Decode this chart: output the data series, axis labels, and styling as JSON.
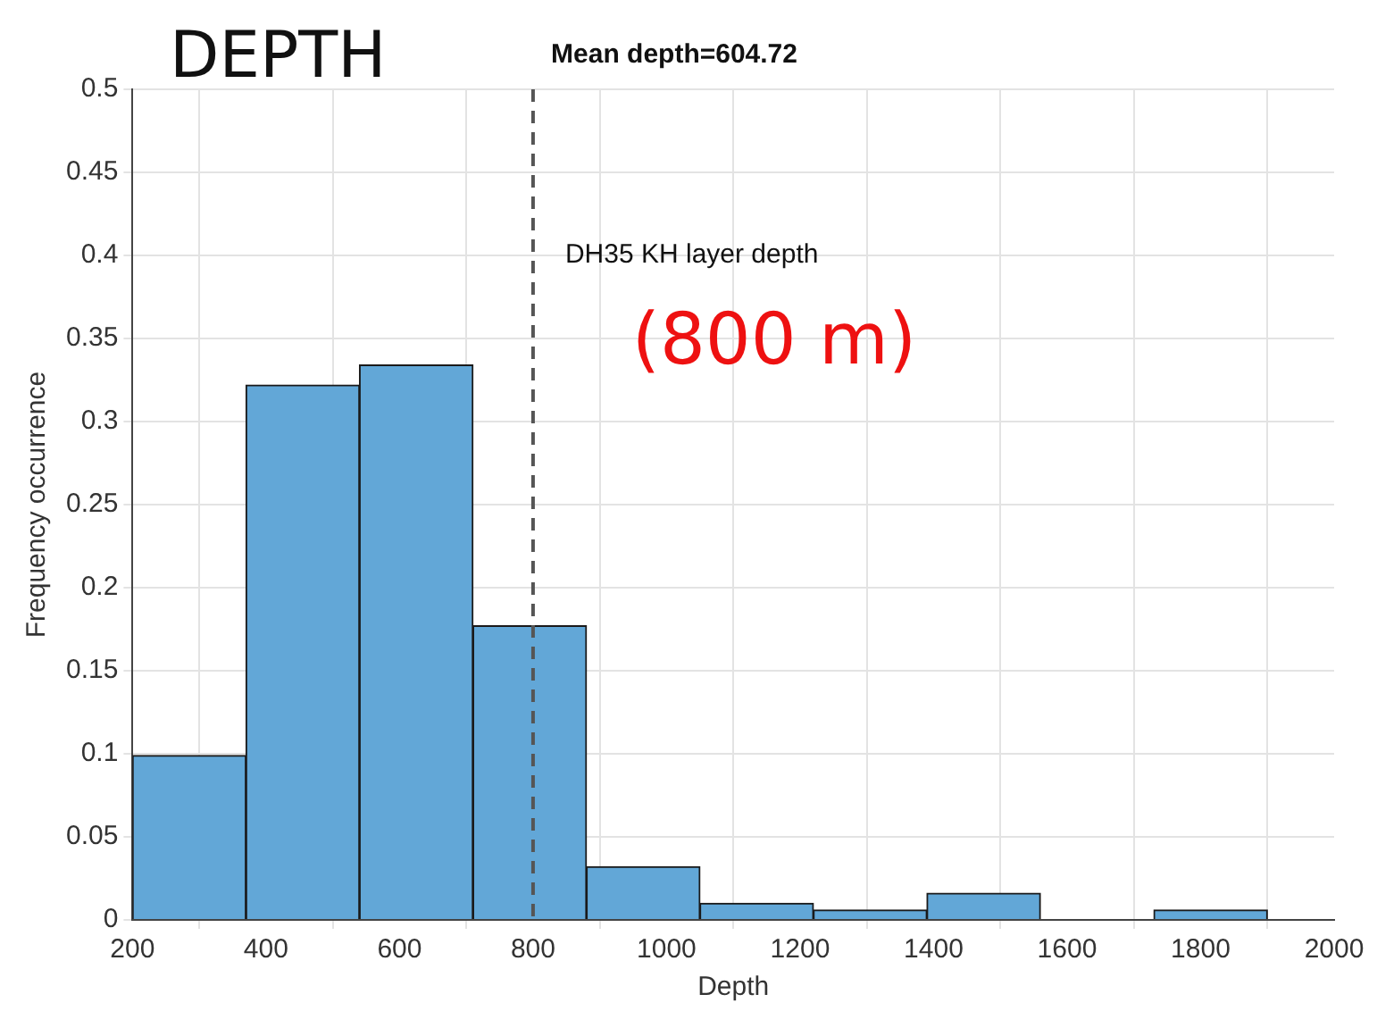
{
  "chart_data": {
    "type": "histogram",
    "title": "Mean depth=604.72",
    "xlabel": "Depth",
    "ylabel": "Frequency occurrence",
    "bins": [
      200,
      370,
      540,
      710,
      880,
      1050,
      1220,
      1390,
      1560,
      1730,
      1900
    ],
    "values": [
      0.099,
      0.322,
      0.334,
      0.177,
      0.032,
      0.01,
      0.006,
      0.016,
      0,
      0.006
    ],
    "color": "#62a7d7",
    "xlim": [
      200,
      2000
    ],
    "xticks": [
      200,
      400,
      600,
      800,
      1000,
      1200,
      1400,
      1600,
      1800,
      2000
    ],
    "ylim": [
      0,
      0.5
    ],
    "yticks": [
      0,
      0.05,
      0.1,
      0.15,
      0.2,
      0.25,
      0.3,
      0.35,
      0.4,
      0.45,
      0.5
    ],
    "grid": true,
    "legend": false,
    "ref_lines": [
      {
        "axis": "x",
        "value": 800,
        "label": "DH35 KH layer depth",
        "color": "#555555",
        "line_style": "dashed"
      }
    ],
    "annotations": [
      "DEPTH",
      "(800 m)"
    ]
  }
}
